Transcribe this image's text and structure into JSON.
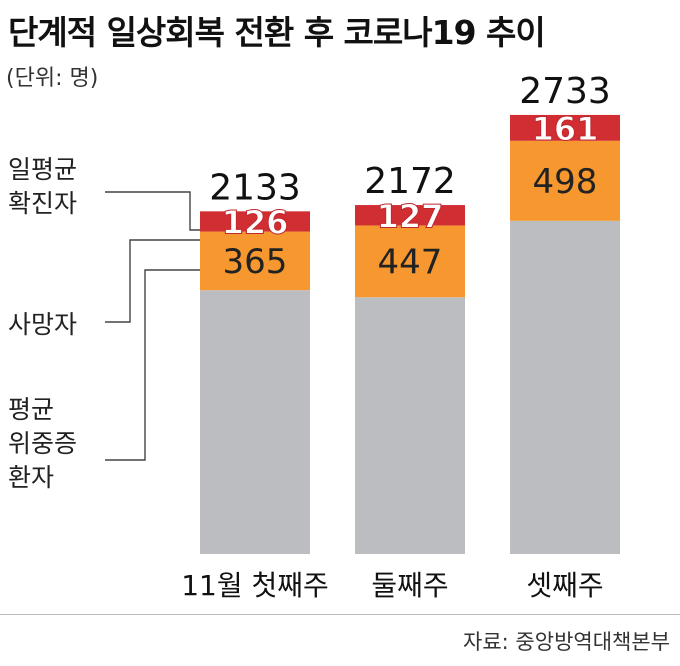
{
  "header": {
    "title": "단계적 일상회복 전환 후 코로나19 추이",
    "unit": "(단위: 명)"
  },
  "footer": {
    "source": "자료: 중앙방역대책본부"
  },
  "chart_data": {
    "type": "bar",
    "stacked": true,
    "title": "단계적 일상회복 전환 후 코로나19 추이",
    "unit": "(단위: 명)",
    "categories": [
      "11월 첫째주",
      "둘째주",
      "셋째주"
    ],
    "series": [
      {
        "name": "평균 위중증 환자",
        "values": [
          1642,
          1598,
          2074
        ],
        "color": "#bcbdc0"
      },
      {
        "name": "사망자",
        "values": [
          365,
          447,
          498
        ],
        "color": "#f6982f"
      },
      {
        "name": "일평균 확진자",
        "values": [
          126,
          127,
          161
        ],
        "color": "#d12e33"
      }
    ],
    "totals": [
      2133,
      2172,
      2733
    ],
    "legend_labels": [
      {
        "lines": [
          "일평균",
          "확진자"
        ]
      },
      {
        "lines": [
          "사망자"
        ]
      },
      {
        "lines": [
          "평균",
          "위중증",
          "환자"
        ]
      }
    ],
    "ylim": [
      0,
      3050
    ],
    "grid": false,
    "legend_placement": "left"
  }
}
